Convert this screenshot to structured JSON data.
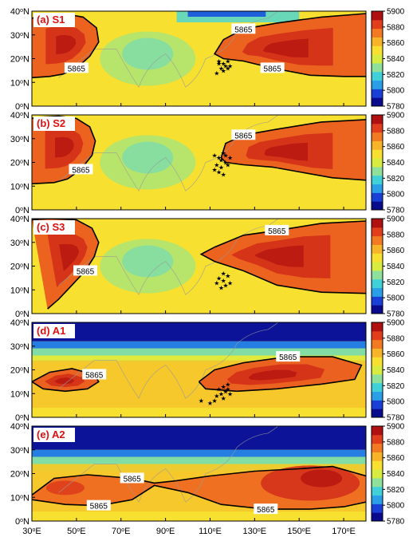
{
  "chart_data": {
    "type": "heatmap",
    "x_ticks": [
      "30°E",
      "50°E",
      "70°E",
      "90°E",
      "110°E",
      "130°E",
      "150°E",
      "170°E"
    ],
    "y_ticks": [
      "0°N",
      "10°N",
      "20°N",
      "30°N",
      "40°N"
    ],
    "xlim": [
      30,
      180
    ],
    "ylim": [
      0,
      40
    ],
    "colorbar": {
      "ticks": [
        "5900",
        "5880",
        "5860",
        "5840",
        "5820",
        "5800",
        "5780"
      ],
      "range": [
        5780,
        5900
      ],
      "colors": [
        "#0a0a8c",
        "#1a3fd6",
        "#2a9fe8",
        "#40d0d8",
        "#8fe09a",
        "#d8ec40",
        "#f7e030",
        "#f8b428",
        "#f27a22",
        "#e23e1c",
        "#b01010"
      ]
    },
    "contour_value": "5865",
    "panels": [
      {
        "title": "(a) S1",
        "contour_labels": [
          "5865",
          "5865",
          "5865"
        ],
        "contours": [
          [
            [
              30,
              12
            ],
            [
              38,
              12.5
            ],
            [
              44,
              13.5
            ],
            [
              50,
              16
            ],
            [
              56,
              21
            ],
            [
              60,
              27
            ],
            [
              59,
              33
            ],
            [
              53,
              37.5
            ],
            [
              44,
              39
            ],
            [
              36,
              38.5
            ],
            [
              30,
              37
            ]
          ],
          [
            [
              180,
              39
            ],
            [
              160,
              37.5
            ],
            [
              140,
              35
            ],
            [
              125,
              32.5
            ],
            [
              116,
              28
            ],
            [
              112,
              22
            ],
            [
              116,
              20
            ],
            [
              125,
              19
            ],
            [
              138,
              16
            ],
            [
              155,
              13
            ],
            [
              170,
              12.5
            ],
            [
              180,
              12.5
            ]
          ]
        ],
        "stars": [
          [
            114,
            18
          ],
          [
            116,
            18
          ],
          [
            117,
            17
          ],
          [
            118,
            19
          ],
          [
            115,
            16
          ],
          [
            119,
            17
          ],
          [
            113,
            14
          ],
          [
            116,
            15
          ],
          [
            118,
            16
          ],
          [
            114,
            19
          ]
        ]
      },
      {
        "title": "(b) S2",
        "contour_labels": [
          "5865",
          "5865"
        ],
        "contours": [
          [
            [
              30,
              11
            ],
            [
              40,
              11.5
            ],
            [
              46,
              13
            ],
            [
              52,
              17
            ],
            [
              57,
              23
            ],
            [
              58.5,
              29
            ],
            [
              56,
              35
            ],
            [
              50,
              38.5
            ],
            [
              42,
              39.5
            ],
            [
              32,
              39
            ],
            [
              30,
              38.5
            ]
          ],
          [
            [
              180,
              38
            ],
            [
              160,
              37
            ],
            [
              140,
              34
            ],
            [
              125,
              31.5
            ],
            [
              117,
              28
            ],
            [
              115,
              22
            ],
            [
              117,
              20
            ],
            [
              125,
              19
            ],
            [
              138,
              18
            ],
            [
              150,
              16
            ],
            [
              165,
              13.5
            ],
            [
              180,
              12.5
            ]
          ]
        ],
        "stars": [
          [
            112,
            23
          ],
          [
            114,
            22
          ],
          [
            116,
            24
          ],
          [
            115,
            18
          ],
          [
            117,
            20
          ],
          [
            113,
            19
          ],
          [
            114,
            16
          ],
          [
            116,
            15
          ],
          [
            118,
            19
          ],
          [
            112,
            17
          ],
          [
            115,
            21
          ],
          [
            117,
            23
          ],
          [
            119,
            22
          ]
        ]
      },
      {
        "title": "(c) S3",
        "contour_labels": [
          "5865",
          "5865"
        ],
        "contours": [
          [
            [
              37,
              2
            ],
            [
              42,
              6
            ],
            [
              48,
              12
            ],
            [
              54,
              18
            ],
            [
              58,
              24
            ],
            [
              60,
              30
            ],
            [
              57,
              36
            ],
            [
              50,
              39.5
            ],
            [
              38,
              40
            ],
            [
              30,
              39.5
            ]
          ],
          [
            [
              180,
              39
            ],
            [
              160,
              38
            ],
            [
              140,
              35
            ],
            [
              125,
              33
            ],
            [
              112,
              28
            ],
            [
              106,
              25
            ],
            [
              112,
              22
            ],
            [
              125,
              18
            ],
            [
              140,
              12
            ],
            [
              160,
              9
            ],
            [
              180,
              8.5
            ]
          ]
        ],
        "stars": [
          [
            114,
            15
          ],
          [
            116,
            14
          ],
          [
            118,
            16
          ],
          [
            117,
            12
          ],
          [
            115,
            11
          ],
          [
            119,
            13
          ],
          [
            113,
            13
          ],
          [
            116,
            17
          ]
        ]
      },
      {
        "title": "(d) A1",
        "contour_labels": [
          "5865",
          "5865"
        ],
        "contours": [
          [
            [
              30,
              15
            ],
            [
              38,
              19
            ],
            [
              48,
              20.5
            ],
            [
              58,
              18
            ],
            [
              60,
              15
            ],
            [
              55,
              12
            ],
            [
              45,
              11
            ],
            [
              35,
              12
            ],
            [
              30,
              15
            ]
          ],
          [
            [
              105,
              15
            ],
            [
              112,
              20
            ],
            [
              125,
              23
            ],
            [
              145,
              25.5
            ],
            [
              165,
              25.5
            ],
            [
              178,
              22
            ],
            [
              175,
              16
            ],
            [
              160,
              14
            ],
            [
              140,
              12
            ],
            [
              122,
              11
            ],
            [
              108,
              12
            ],
            [
              105,
              15
            ]
          ]
        ],
        "stars": [
          [
            114,
            12
          ],
          [
            116,
            13
          ],
          [
            117,
            11
          ],
          [
            115,
            10
          ],
          [
            118,
            12
          ],
          [
            113,
            9
          ],
          [
            116,
            8
          ],
          [
            112,
            7
          ],
          [
            110,
            6
          ],
          [
            106,
            7
          ],
          [
            118,
            14
          ],
          [
            119,
            10
          ]
        ]
      },
      {
        "title": "(e) A2",
        "contour_labels": [
          "5865",
          "5865",
          "5865"
        ],
        "contours": [
          [
            [
              30,
              11
            ],
            [
              40,
              18
            ],
            [
              55,
              19.5
            ],
            [
              75,
              18
            ],
            [
              85,
              16
            ],
            [
              95,
              17
            ],
            [
              110,
              19
            ],
            [
              130,
              21
            ],
            [
              150,
              22
            ],
            [
              165,
              23
            ],
            [
              180,
              19
            ]
          ],
          [
            [
              30,
              9
            ],
            [
              45,
              7
            ],
            [
              60,
              6.5
            ],
            [
              75,
              9
            ],
            [
              85,
              15
            ],
            [
              100,
              12
            ],
            [
              115,
              7
            ],
            [
              135,
              5
            ],
            [
              155,
              5
            ],
            [
              170,
              6
            ],
            [
              180,
              8
            ]
          ]
        ],
        "stars": []
      }
    ]
  }
}
